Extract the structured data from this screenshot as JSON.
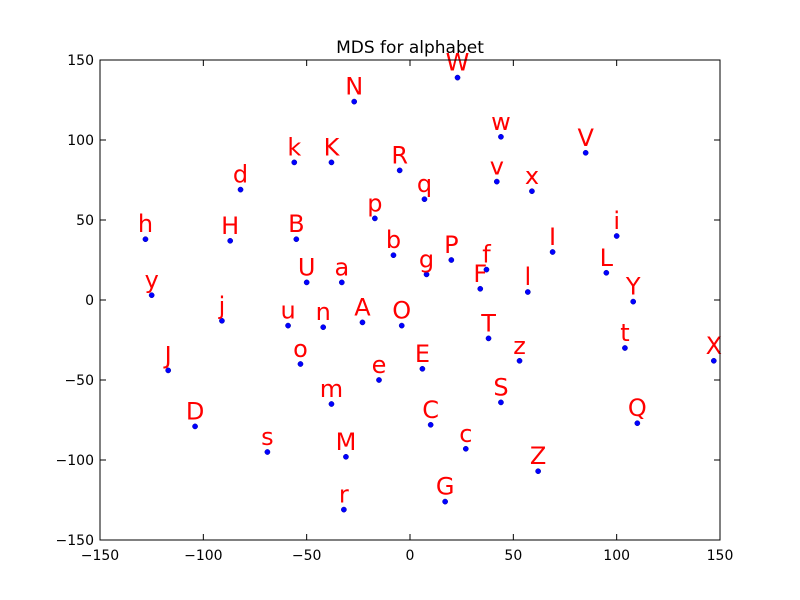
{
  "chart_data": {
    "type": "scatter",
    "title": "MDS for alphabet",
    "xlabel": "",
    "ylabel": "",
    "xlim": [
      -150,
      150
    ],
    "ylim": [
      -150,
      150
    ],
    "xticks": [
      -150,
      -100,
      -50,
      0,
      50,
      100,
      150
    ],
    "yticks": [
      -150,
      -100,
      -50,
      0,
      50,
      100,
      150
    ],
    "xtick_labels": [
      "−150",
      "−100",
      "−50",
      "0",
      "50",
      "100",
      "150"
    ],
    "ytick_labels": [
      "−150",
      "−100",
      "−50",
      "0",
      "50",
      "100",
      "150"
    ],
    "grid": false,
    "marker_color": "#0000ff",
    "label_color": "#ff0000",
    "points": [
      {
        "label": "N",
        "x": -27,
        "y": 124
      },
      {
        "label": "W",
        "x": 23,
        "y": 139
      },
      {
        "label": "w",
        "x": 44,
        "y": 102
      },
      {
        "label": "V",
        "x": 85,
        "y": 92
      },
      {
        "label": "k",
        "x": -56,
        "y": 86
      },
      {
        "label": "K",
        "x": -38,
        "y": 86
      },
      {
        "label": "R",
        "x": -5,
        "y": 81
      },
      {
        "label": "v",
        "x": 42,
        "y": 74
      },
      {
        "label": "x",
        "x": 59,
        "y": 68
      },
      {
        "label": "d",
        "x": -82,
        "y": 69
      },
      {
        "label": "q",
        "x": 7,
        "y": 63
      },
      {
        "label": "p",
        "x": -17,
        "y": 51
      },
      {
        "label": "h",
        "x": -128,
        "y": 38
      },
      {
        "label": "H",
        "x": -87,
        "y": 37
      },
      {
        "label": "B",
        "x": -55,
        "y": 38
      },
      {
        "label": "i",
        "x": 100,
        "y": 40
      },
      {
        "label": "I",
        "x": 69,
        "y": 30
      },
      {
        "label": "b",
        "x": -8,
        "y": 28
      },
      {
        "label": "P",
        "x": 20,
        "y": 25
      },
      {
        "label": "f",
        "x": 37,
        "y": 19
      },
      {
        "label": "g",
        "x": 8,
        "y": 16
      },
      {
        "label": "L",
        "x": 95,
        "y": 17
      },
      {
        "label": "U",
        "x": -50,
        "y": 11
      },
      {
        "label": "a",
        "x": -33,
        "y": 11
      },
      {
        "label": "F",
        "x": 34,
        "y": 7
      },
      {
        "label": "l",
        "x": 57,
        "y": 5
      },
      {
        "label": "y",
        "x": -125,
        "y": 3
      },
      {
        "label": "Y",
        "x": 108,
        "y": -1
      },
      {
        "label": "j",
        "x": -91,
        "y": -13
      },
      {
        "label": "A",
        "x": -23,
        "y": -14
      },
      {
        "label": "u",
        "x": -59,
        "y": -16
      },
      {
        "label": "n",
        "x": -42,
        "y": -17
      },
      {
        "label": "O",
        "x": -4,
        "y": -16
      },
      {
        "label": "T",
        "x": 38,
        "y": -24
      },
      {
        "label": "t",
        "x": 104,
        "y": -30
      },
      {
        "label": "z",
        "x": 53,
        "y": -38
      },
      {
        "label": "X",
        "x": 147,
        "y": -38
      },
      {
        "label": "o",
        "x": -53,
        "y": -40
      },
      {
        "label": "J",
        "x": -117,
        "y": -44
      },
      {
        "label": "E",
        "x": 6,
        "y": -43
      },
      {
        "label": "e",
        "x": -15,
        "y": -50
      },
      {
        "label": "m",
        "x": -38,
        "y": -65
      },
      {
        "label": "S",
        "x": 44,
        "y": -64
      },
      {
        "label": "D",
        "x": -104,
        "y": -79
      },
      {
        "label": "C",
        "x": 10,
        "y": -78
      },
      {
        "label": "Q",
        "x": 110,
        "y": -77
      },
      {
        "label": "s",
        "x": -69,
        "y": -95
      },
      {
        "label": "c",
        "x": 27,
        "y": -93
      },
      {
        "label": "M",
        "x": -31,
        "y": -98
      },
      {
        "label": "Z",
        "x": 62,
        "y": -107
      },
      {
        "label": "G",
        "x": 17,
        "y": -126
      },
      {
        "label": "r",
        "x": -32,
        "y": -131
      }
    ]
  }
}
